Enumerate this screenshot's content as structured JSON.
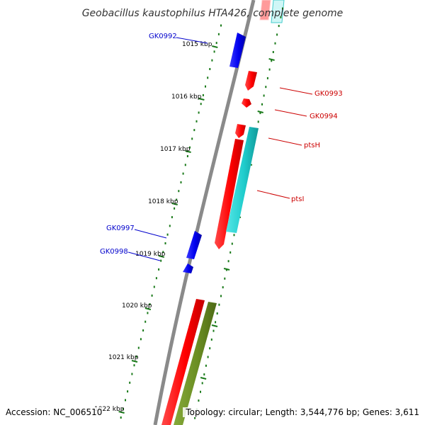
{
  "title": "Geobacillus kaustophilus HTA426, complete genome",
  "footer": {
    "accession": "Accession: NC_006510",
    "summary": "Topology: circular; Length: 3,544,776 bp; Genes: 3,611"
  },
  "ruler": {
    "labels": [
      "1015 kbp",
      "1016 kbp",
      "1017 kbp",
      "1018 kbp",
      "1019 kbp",
      "1020 kbp",
      "1021 kbp",
      "1022 kbp"
    ],
    "tick_color": "#1a7a1a"
  },
  "colors": {
    "backbone": "#888888",
    "gene_forward_blue": "#0000ee",
    "gene_red": "#ff0000",
    "gene_cyan": "#22cccc",
    "gene_olive": "#6b8e23",
    "label_blue": "#0000cc",
    "label_red": "#cc0000"
  },
  "genes": [
    {
      "name": "GK0992",
      "strand": "left",
      "color": "#0000ee"
    },
    {
      "name": "GK0993",
      "strand": "right",
      "color": "#ff0000"
    },
    {
      "name": "GK0994",
      "strand": "right",
      "color": "#ff0000"
    },
    {
      "name": "ptsH",
      "strand": "right",
      "color": "#ff0000"
    },
    {
      "name": "ptsI",
      "strand": "right",
      "color": "#ff0000"
    },
    {
      "name": "GK0997",
      "strand": "left",
      "color": "#0000ee"
    },
    {
      "name": "GK0998",
      "strand": "left",
      "color": "#0000ee"
    }
  ]
}
